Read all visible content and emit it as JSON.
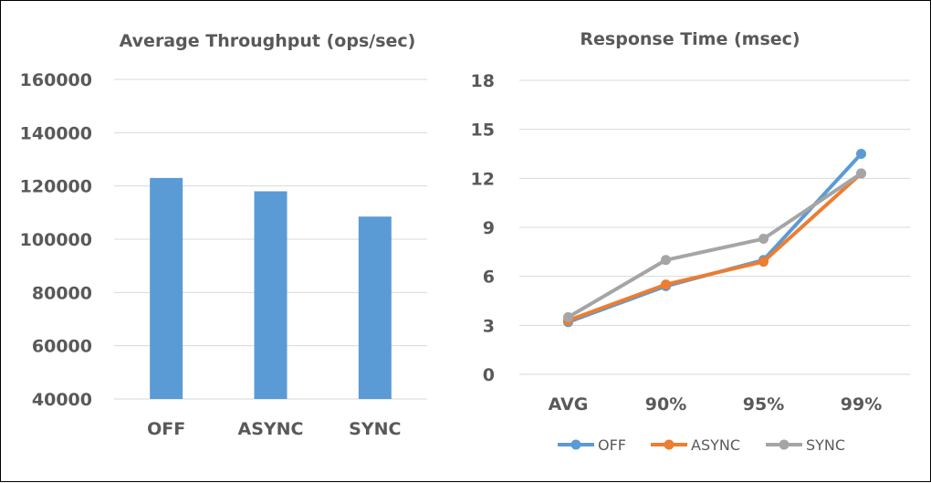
{
  "chart_data": [
    {
      "type": "bar",
      "title": "Average Throughput (ops/sec)",
      "categories": [
        "OFF",
        "ASYNC",
        "SYNC"
      ],
      "values": [
        123000,
        118000,
        108500
      ],
      "ylim": [
        40000,
        160000
      ],
      "yticks": [
        "40000",
        "60000",
        "80000",
        "100000",
        "120000",
        "140000",
        "160000"
      ],
      "grid": true,
      "legend": "none",
      "color": "#5B9BD5"
    },
    {
      "type": "line",
      "title": "Response Time (msec)",
      "categories": [
        "AVG",
        "90%",
        "95%",
        "99%"
      ],
      "series": [
        {
          "name": "OFF",
          "values": [
            3.2,
            5.4,
            7.0,
            13.5
          ],
          "color": "#5B9BD5"
        },
        {
          "name": "ASYNC",
          "values": [
            3.3,
            5.5,
            6.9,
            12.3
          ],
          "color": "#ED7D31"
        },
        {
          "name": "SYNC",
          "values": [
            3.5,
            7.0,
            8.3,
            12.3
          ],
          "color": "#A5A5A5"
        }
      ],
      "ylim": [
        0,
        18
      ],
      "yticks": [
        "0",
        "3",
        "6",
        "9",
        "12",
        "15",
        "18"
      ],
      "grid": true,
      "legend": "bottom"
    }
  ]
}
